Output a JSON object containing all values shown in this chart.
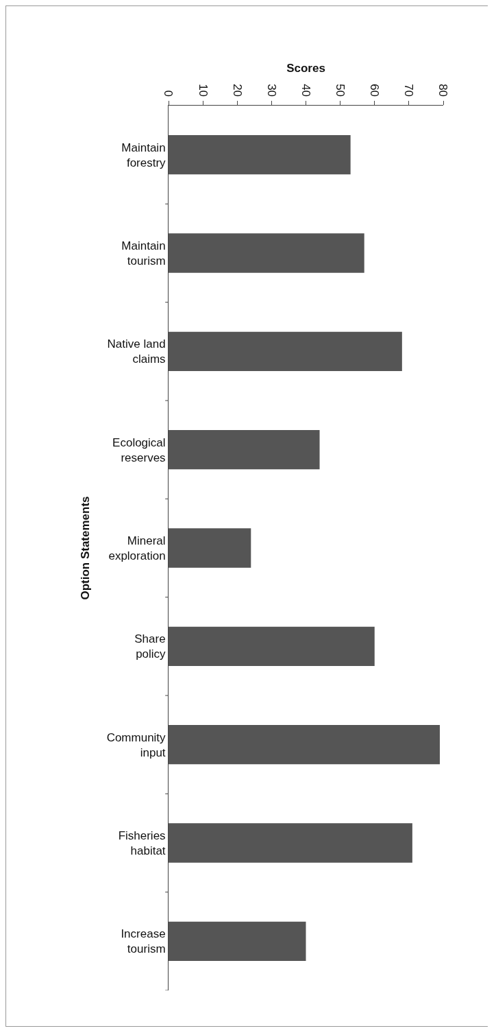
{
  "chart_data": {
    "type": "bar",
    "orientation": "horizontal",
    "xlabel": "Scores",
    "ylabel": "Option Statements",
    "categories": [
      "Maintain forestry",
      "Maintain tourism",
      "Native land claims",
      "Ecological reserves",
      "Mineral exploration",
      "Share policy",
      "Community input",
      "Fisheries habitat",
      "Increase tourism"
    ],
    "values": [
      53,
      57,
      68,
      44,
      24,
      60,
      79,
      71,
      40
    ],
    "color": "#555555",
    "xlim": [
      0,
      80
    ],
    "xticks": [
      0,
      10,
      20,
      30,
      40,
      50,
      60,
      70,
      80
    ],
    "grid": false
  }
}
